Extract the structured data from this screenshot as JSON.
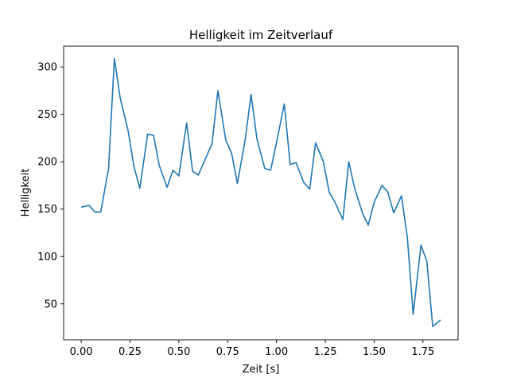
{
  "chart_data": {
    "type": "line",
    "title": "Helligkeit im Zeitverlauf",
    "xlabel": "Zeit [s]",
    "ylabel": "Helligkeit",
    "xlim": [
      -0.09,
      1.93
    ],
    "ylim": [
      12,
      322
    ],
    "xticks": [
      0.0,
      0.25,
      0.5,
      0.75,
      1.0,
      1.25,
      1.5,
      1.75
    ],
    "xtick_labels": [
      "0.00",
      "0.25",
      "0.50",
      "0.75",
      "1.00",
      "1.25",
      "1.50",
      "1.75"
    ],
    "yticks": [
      50,
      100,
      150,
      200,
      250,
      300
    ],
    "ytick_labels": [
      "50",
      "100",
      "150",
      "200",
      "250",
      "300"
    ],
    "grid": false,
    "series": [
      {
        "color": "#1f77b4",
        "x": [
          0.0,
          0.04,
          0.07,
          0.1,
          0.14,
          0.17,
          0.2,
          0.24,
          0.27,
          0.3,
          0.34,
          0.37,
          0.4,
          0.44,
          0.47,
          0.5,
          0.54,
          0.57,
          0.6,
          0.64,
          0.67,
          0.7,
          0.74,
          0.77,
          0.8,
          0.84,
          0.87,
          0.9,
          0.94,
          0.97,
          1.0,
          1.04,
          1.07,
          1.1,
          1.14,
          1.17,
          1.2,
          1.24,
          1.27,
          1.3,
          1.34,
          1.37,
          1.4,
          1.44,
          1.47,
          1.5,
          1.54,
          1.57,
          1.6,
          1.64,
          1.67,
          1.7,
          1.74,
          1.77,
          1.8,
          1.84
        ],
        "values": [
          152,
          154,
          147,
          147,
          193,
          309,
          267,
          233,
          195,
          172,
          229,
          228,
          196,
          173,
          191,
          185,
          241,
          190,
          186,
          205,
          219,
          275,
          223,
          209,
          177,
          224,
          271,
          224,
          193,
          191,
          220,
          261,
          197,
          199,
          178,
          171,
          220,
          200,
          168,
          157,
          139,
          200,
          172,
          146,
          133,
          157,
          175,
          168,
          146,
          164,
          120,
          39,
          112,
          95,
          26,
          33
        ]
      }
    ]
  }
}
